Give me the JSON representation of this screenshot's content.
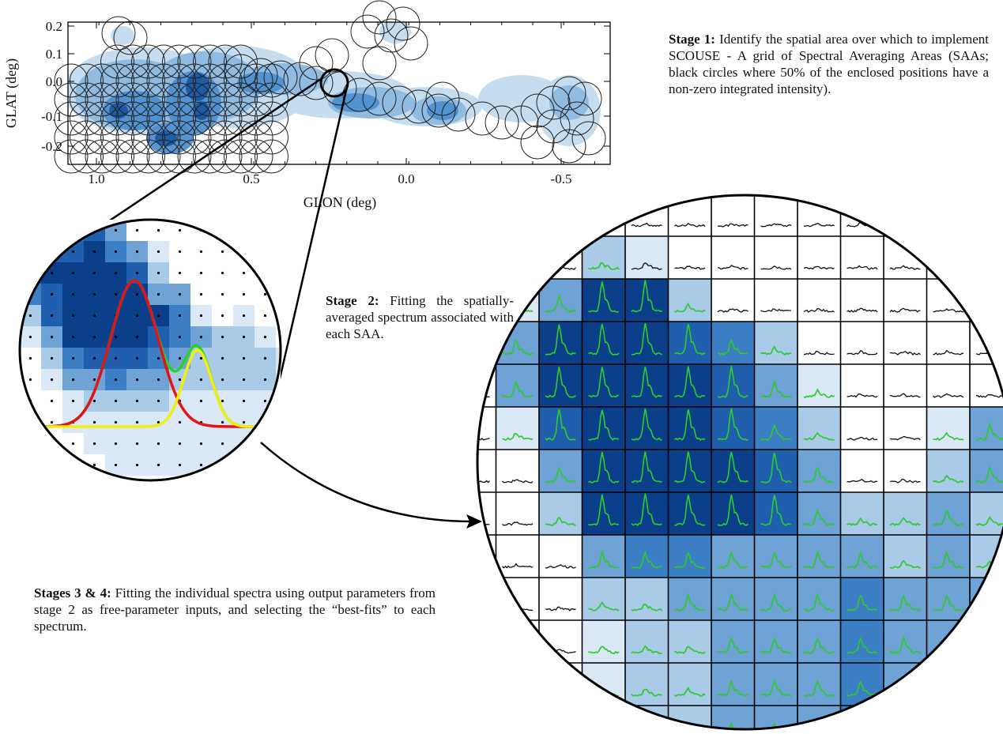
{
  "stage1": {
    "title": "Stage 1:",
    "text": " Identify the spatial area over which to implement SCOUSE - A grid of Spectral Averaging Areas (SAAs; black circles where 50% of the enclosed positions have a non-zero integrated intensity)."
  },
  "stage2": {
    "title": "Stage 2:",
    "text": " Fitting the spatially-averaged spectrum associated with each SAA."
  },
  "stage34": {
    "title": "Stages 3 & 4:",
    "text": " Fitting the individual spectra using output parameters from stage 2 as free-parameter inputs, and selecting the “best-fits” to each spectrum."
  },
  "map_panel": {
    "xlabel": "GLON (deg)",
    "ylabel": "GLAT (deg)",
    "xticks": [
      "1.0",
      "0.5",
      "0.0",
      "-0.5"
    ],
    "yticks": [
      "0.2",
      "0.1",
      "0.0",
      "-0.1",
      "-0.2"
    ]
  },
  "colors": {
    "dark_blue": "#0b3f8a",
    "mid_blue": "#3c7fc4",
    "light_blue": "#a9cbe8",
    "fit_red": "#e01616",
    "fit_yellow": "#f2ee10",
    "fit_green": "#2bd12b",
    "spectrum_black": "#111111"
  }
}
